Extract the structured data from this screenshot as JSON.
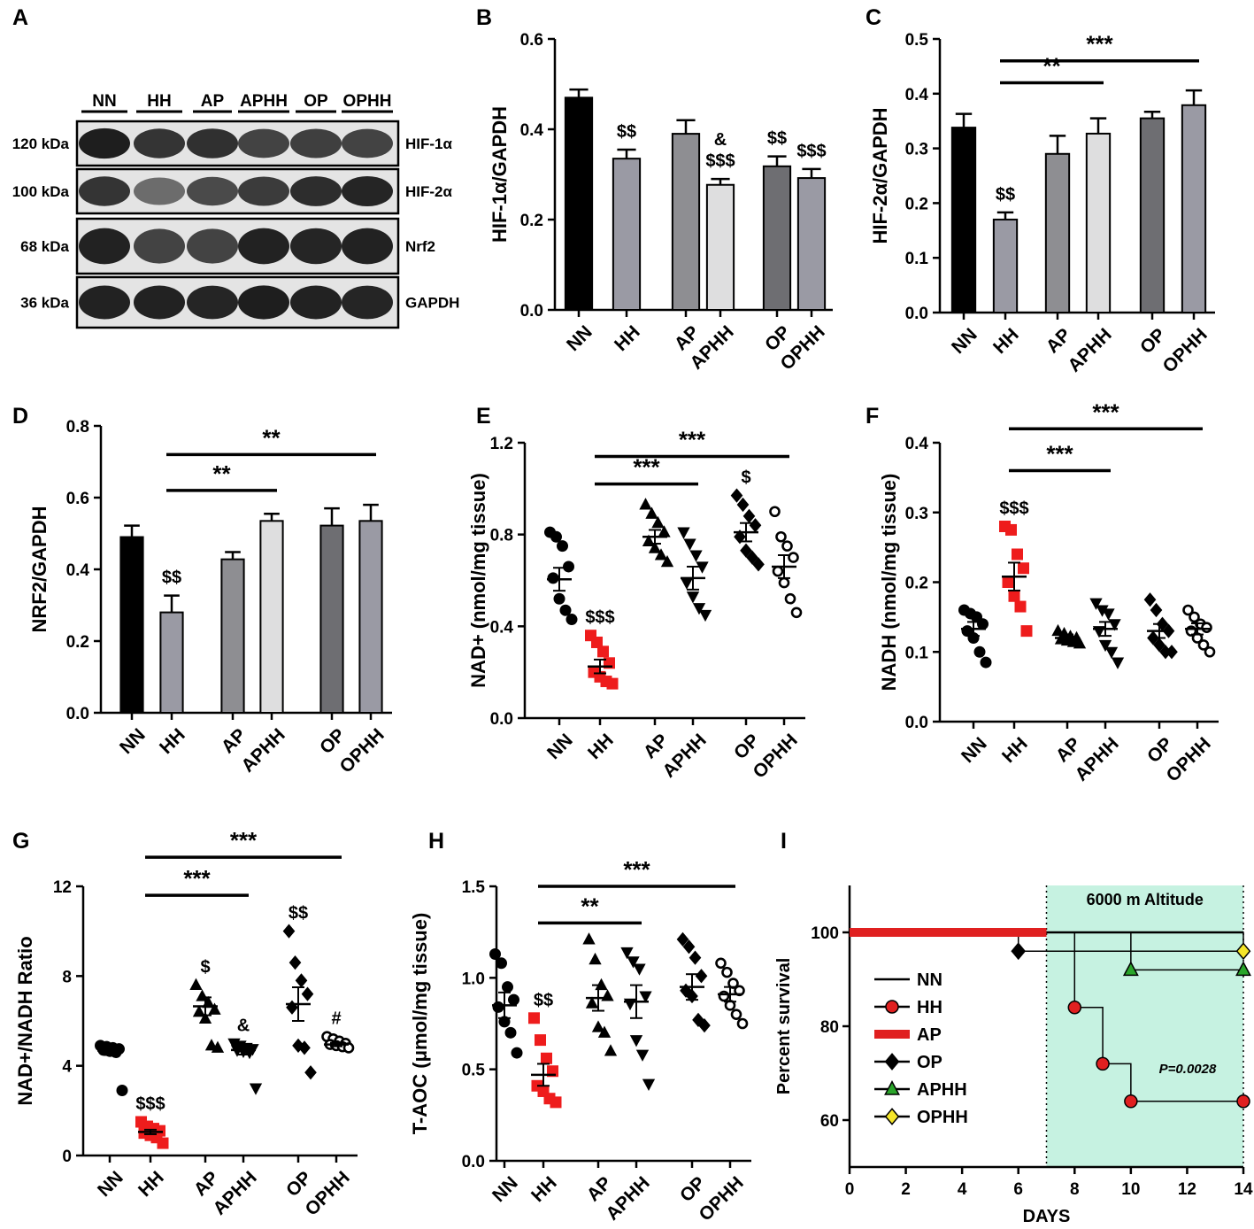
{
  "panel_letters": {
    "A": "A",
    "B": "B",
    "C": "C",
    "D": "D",
    "E": "E",
    "F": "F",
    "G": "G",
    "H": "H",
    "I": "I"
  },
  "blot": {
    "lanes": [
      "NN",
      "HH",
      "AP",
      "APHH",
      "OP",
      "OPHH"
    ],
    "rows": [
      {
        "kda": "120 kDa",
        "protein": "HIF-1α",
        "intensity": [
          0.92,
          0.8,
          0.82,
          0.72,
          0.74,
          0.72
        ]
      },
      {
        "kda": "100 kDa",
        "protein": "HIF-2α",
        "intensity": [
          0.8,
          0.5,
          0.68,
          0.76,
          0.84,
          0.88
        ]
      },
      {
        "kda": "68 kDa",
        "protein": "Nrf2",
        "intensity": [
          0.9,
          0.72,
          0.72,
          0.9,
          0.88,
          0.9
        ]
      },
      {
        "kda": "36 kDa",
        "protein": "GAPDH",
        "intensity": [
          0.9,
          0.9,
          0.88,
          0.92,
          0.9,
          0.88
        ]
      }
    ]
  },
  "chart_data": [
    {
      "panel": "B",
      "type": "bar",
      "ylabel": "HIF-1α/GAPDH",
      "ylim": [
        0,
        0.6
      ],
      "yticks": [
        "0.0",
        "0.2",
        "0.4",
        "0.6"
      ],
      "categories": [
        "NN",
        "HH",
        "AP",
        "APHH",
        "OP",
        "OPHH"
      ],
      "values": [
        0.47,
        0.335,
        0.39,
        0.277,
        0.318,
        0.292
      ],
      "errors": [
        0.018,
        0.02,
        0.03,
        0.013,
        0.022,
        0.02
      ],
      "colors": [
        "#000000",
        "#9a9aa4",
        "#8e8e92",
        "#dededf",
        "#6e6e72",
        "#9a9aa4"
      ],
      "annotations": [
        {
          "cat": 1,
          "lines": [
            "$$"
          ]
        },
        {
          "cat": 3,
          "lines": [
            "&",
            "$$$"
          ]
        },
        {
          "cat": 4,
          "lines": [
            "$$"
          ]
        },
        {
          "cat": 5,
          "lines": [
            "$$$"
          ]
        }
      ],
      "brackets": []
    },
    {
      "panel": "C",
      "type": "bar",
      "ylabel": "HIF-2α/GAPDH",
      "ylim": [
        0,
        0.5
      ],
      "yticks": [
        "0.0",
        "0.1",
        "0.2",
        "0.3",
        "0.4",
        "0.5"
      ],
      "categories": [
        "NN",
        "HH",
        "AP",
        "APHH",
        "OP",
        "OPHH"
      ],
      "values": [
        0.338,
        0.17,
        0.29,
        0.327,
        0.355,
        0.379
      ],
      "errors": [
        0.025,
        0.013,
        0.033,
        0.028,
        0.012,
        0.027
      ],
      "colors": [
        "#000000",
        "#9a9aa4",
        "#8e8e92",
        "#dededf",
        "#6e6e72",
        "#9a9aa4"
      ],
      "annotations": [
        {
          "cat": 1,
          "lines": [
            "$$"
          ]
        }
      ],
      "brackets": [
        {
          "from": 1,
          "to": 3,
          "label": "**",
          "at": 0.42
        },
        {
          "from": 1,
          "to": 5,
          "label": "***",
          "at": 0.46
        }
      ]
    },
    {
      "panel": "D",
      "type": "bar",
      "ylabel": "NRF2/GAPDH",
      "ylim": [
        0,
        0.8
      ],
      "yticks": [
        "0.0",
        "0.2",
        "0.4",
        "0.6",
        "0.8"
      ],
      "categories": [
        "NN",
        "HH",
        "AP",
        "APHH",
        "OP",
        "OPHH"
      ],
      "values": [
        0.49,
        0.28,
        0.428,
        0.535,
        0.522,
        0.535
      ],
      "errors": [
        0.032,
        0.047,
        0.02,
        0.02,
        0.048,
        0.045
      ],
      "colors": [
        "#000000",
        "#9a9aa4",
        "#8e8e92",
        "#dededf",
        "#6e6e72",
        "#9a9aa4"
      ],
      "annotations": [
        {
          "cat": 1,
          "lines": [
            "$$"
          ]
        }
      ],
      "brackets": [
        {
          "from": 1,
          "to": 3,
          "label": "**",
          "at": 0.62
        },
        {
          "from": 1,
          "to": 5,
          "label": "**",
          "at": 0.72
        }
      ]
    },
    {
      "panel": "E",
      "type": "scatter",
      "ylabel": "NAD+ (nmol/mg tissue)",
      "ylim": [
        0,
        1.2
      ],
      "yticks": [
        "0.0",
        "0.4",
        "0.8",
        "1.2"
      ],
      "categories": [
        "NN",
        "HH",
        "AP",
        "APHH",
        "OP",
        "OPHH"
      ],
      "markers": [
        "circle",
        "square",
        "triangle",
        "triangle-down",
        "diamond",
        "circle-open"
      ],
      "point_colors": [
        "#000000",
        "#ee1c1c",
        "#000000",
        "#000000",
        "#000000",
        "#000000"
      ],
      "points": [
        [
          0.81,
          0.79,
          0.75,
          0.66,
          0.61,
          0.52,
          0.47,
          0.43
        ],
        [
          0.36,
          0.33,
          0.29,
          0.24,
          0.2,
          0.18,
          0.16,
          0.15
        ],
        [
          0.93,
          0.89,
          0.85,
          0.81,
          0.77,
          0.74,
          0.71,
          0.68
        ],
        [
          0.81,
          0.76,
          0.71,
          0.66,
          0.59,
          0.53,
          0.48,
          0.45
        ],
        [
          0.97,
          0.93,
          0.88,
          0.84,
          0.79,
          0.73,
          0.7,
          0.67
        ],
        [
          0.9,
          0.79,
          0.75,
          0.7,
          0.64,
          0.59,
          0.52,
          0.46
        ]
      ],
      "means": [
        0.605,
        0.225,
        0.79,
        0.61,
        0.81,
        0.66
      ],
      "sems": [
        0.05,
        0.03,
        0.03,
        0.05,
        0.04,
        0.05
      ],
      "annotations": [
        {
          "cat": 1,
          "lines": [
            "$$$"
          ]
        },
        {
          "cat": 4,
          "lines": [
            "$"
          ]
        }
      ],
      "brackets": [
        {
          "from": 1,
          "to": 3,
          "label": "***",
          "at": 1.02
        },
        {
          "from": 1,
          "to": 5,
          "label": "***",
          "at": 1.14
        }
      ]
    },
    {
      "panel": "F",
      "type": "scatter",
      "ylabel": "NADH (nmol/mg tissue)",
      "ylim": [
        0,
        0.4
      ],
      "yticks": [
        "0.0",
        "0.1",
        "0.2",
        "0.3",
        "0.4"
      ],
      "categories": [
        "NN",
        "HH",
        "AP",
        "APHH",
        "OP",
        "OPHH"
      ],
      "markers": [
        "circle",
        "square",
        "triangle",
        "triangle-down",
        "diamond",
        "circle-open"
      ],
      "point_colors": [
        "#000000",
        "#ee1c1c",
        "#000000",
        "#000000",
        "#000000",
        "#000000"
      ],
      "points": [
        [
          0.16,
          0.155,
          0.15,
          0.14,
          0.13,
          0.12,
          0.1,
          0.085
        ],
        [
          0.28,
          0.275,
          0.24,
          0.22,
          0.2,
          0.18,
          0.165,
          0.13
        ],
        [
          0.13,
          0.126,
          0.122,
          0.12,
          0.118,
          0.116,
          0.114,
          0.112
        ],
        [
          0.17,
          0.16,
          0.155,
          0.14,
          0.13,
          0.11,
          0.1,
          0.085
        ],
        [
          0.175,
          0.16,
          0.14,
          0.13,
          0.12,
          0.11,
          0.1,
          0.1
        ],
        [
          0.16,
          0.15,
          0.14,
          0.135,
          0.13,
          0.12,
          0.11,
          0.1
        ]
      ],
      "means": [
        0.133,
        0.208,
        0.12,
        0.133,
        0.13,
        0.133
      ],
      "sems": [
        0.01,
        0.02,
        0.005,
        0.01,
        0.01,
        0.008
      ],
      "annotations": [
        {
          "cat": 1,
          "lines": [
            "$$$"
          ]
        }
      ],
      "brackets": [
        {
          "from": 1,
          "to": 3,
          "label": "***",
          "at": 0.36
        },
        {
          "from": 1,
          "to": 5,
          "label": "***",
          "at": 0.42
        }
      ]
    },
    {
      "panel": "G",
      "type": "scatter",
      "ylabel": "NAD+/NADH Ratio",
      "ylim": [
        0,
        12
      ],
      "yticks": [
        "0",
        "4",
        "8",
        "12"
      ],
      "categories": [
        "NN",
        "HH",
        "AP",
        "APHH",
        "OP",
        "OPHH"
      ],
      "markers": [
        "circle",
        "square",
        "triangle",
        "triangle-down",
        "diamond",
        "circle-open"
      ],
      "point_colors": [
        "#000000",
        "#ee1c1c",
        "#000000",
        "#000000",
        "#000000",
        "#000000"
      ],
      "points": [
        [
          4.9,
          4.85,
          4.8,
          4.75,
          4.7,
          4.65,
          4.6,
          2.9
        ],
        [
          1.5,
          1.3,
          1.2,
          1.1,
          1.0,
          0.9,
          0.8,
          0.55
        ],
        [
          7.6,
          7.1,
          6.8,
          6.5,
          6.4,
          6.1,
          4.9,
          4.8
        ],
        [
          5.0,
          4.9,
          4.8,
          4.75,
          4.7,
          4.65,
          4.6,
          3.0
        ],
        [
          10.0,
          8.6,
          7.8,
          7.2,
          6.6,
          4.9,
          4.8,
          3.7
        ],
        [
          5.3,
          5.2,
          5.1,
          5.0,
          4.95,
          4.9,
          4.85,
          4.8
        ]
      ],
      "means": [
        4.68,
        1.05,
        6.65,
        4.7,
        6.75,
        4.95
      ],
      "sems": [
        0.2,
        0.1,
        0.4,
        0.2,
        0.75,
        0.08
      ],
      "annotations": [
        {
          "cat": 1,
          "lines": [
            "$$$"
          ]
        },
        {
          "cat": 2,
          "lines": [
            "$"
          ]
        },
        {
          "cat": 3,
          "lines": [
            "&"
          ]
        },
        {
          "cat": 4,
          "lines": [
            "$$"
          ]
        },
        {
          "cat": 5,
          "lines": [
            "#"
          ]
        }
      ],
      "brackets": [
        {
          "from": 1,
          "to": 3,
          "label": "***",
          "at": 11.6
        },
        {
          "from": 1,
          "to": 5,
          "label": "***",
          "at": 13.3
        }
      ]
    },
    {
      "panel": "H",
      "type": "scatter",
      "ylabel": "T-AOC (μmol/mg tissue)",
      "ylim": [
        0,
        1.5
      ],
      "yticks": [
        "0.0",
        "0.5",
        "1.0",
        "1.5"
      ],
      "categories": [
        "NN",
        "HH",
        "AP",
        "APHH",
        "OP",
        "OPHH"
      ],
      "markers": [
        "circle",
        "square",
        "triangle",
        "triangle-down",
        "diamond",
        "circle-open"
      ],
      "point_colors": [
        "#000000",
        "#ee1c1c",
        "#000000",
        "#000000",
        "#000000",
        "#000000"
      ],
      "points": [
        [
          1.13,
          1.08,
          0.95,
          0.88,
          0.84,
          0.76,
          0.7,
          0.59
        ],
        [
          0.78,
          0.66,
          0.56,
          0.49,
          0.41,
          0.38,
          0.34,
          0.32
        ],
        [
          1.21,
          1.1,
          0.96,
          0.9,
          0.86,
          0.73,
          0.7,
          0.6
        ],
        [
          1.14,
          1.09,
          1.05,
          0.9,
          0.86,
          0.66,
          0.58,
          0.42
        ],
        [
          1.21,
          1.17,
          1.11,
          1.01,
          0.93,
          0.9,
          0.77,
          0.74
        ],
        [
          1.08,
          1.03,
          0.97,
          0.93,
          0.9,
          0.85,
          0.8,
          0.75
        ]
      ],
      "means": [
        0.85,
        0.47,
        0.89,
        0.87,
        0.95,
        0.91
      ],
      "sems": [
        0.07,
        0.06,
        0.07,
        0.09,
        0.07,
        0.04
      ],
      "annotations": [
        {
          "cat": 1,
          "lines": [
            "$$"
          ]
        }
      ],
      "brackets": [
        {
          "from": 1,
          "to": 3,
          "label": "**",
          "at": 1.3
        },
        {
          "from": 1,
          "to": 5,
          "label": "***",
          "at": 1.5
        }
      ]
    },
    {
      "panel": "I",
      "type": "line",
      "title": "6000 m Altitude",
      "xlabel": "DAYS",
      "ylabel": "Percent survival",
      "xlim": [
        0,
        14
      ],
      "ylim": [
        50,
        110
      ],
      "xticks": [
        "0",
        "2",
        "4",
        "6",
        "8",
        "10",
        "12",
        "14"
      ],
      "yticks": [
        "60",
        "80",
        "100"
      ],
      "shaded_x": [
        7,
        14
      ],
      "p_value": "P=0.0028",
      "series": [
        {
          "name": "NN",
          "color": "#000000",
          "marker": "none",
          "x": [
            0,
            14
          ],
          "y": [
            100,
            100
          ]
        },
        {
          "name": "HH",
          "color": "#e02020",
          "marker": "circle",
          "x": [
            0,
            7,
            8,
            9,
            10,
            14
          ],
          "y": [
            100,
            100,
            84,
            72,
            64,
            64
          ],
          "marked": [
            2,
            3,
            4,
            5
          ]
        },
        {
          "name": "AP",
          "color": "#e02020",
          "marker": "none",
          "x": [
            0,
            7
          ],
          "y": [
            100,
            100
          ]
        },
        {
          "name": "OP",
          "color": "#000000",
          "marker": "diamond",
          "x": [
            0,
            6,
            14
          ],
          "y": [
            100,
            96,
            96
          ],
          "marked": [
            1
          ]
        },
        {
          "name": "APHH",
          "color": "#2aa52a",
          "marker": "triangle",
          "x": [
            0,
            7,
            10,
            14
          ],
          "y": [
            100,
            100,
            92,
            92
          ],
          "marked": [
            2,
            3
          ]
        },
        {
          "name": "OPHH",
          "color": "#f5e62a",
          "marker": "diamond",
          "x": [
            0,
            7,
            14
          ],
          "y": [
            100,
            100,
            96
          ],
          "marked": [
            2
          ]
        }
      ]
    }
  ]
}
